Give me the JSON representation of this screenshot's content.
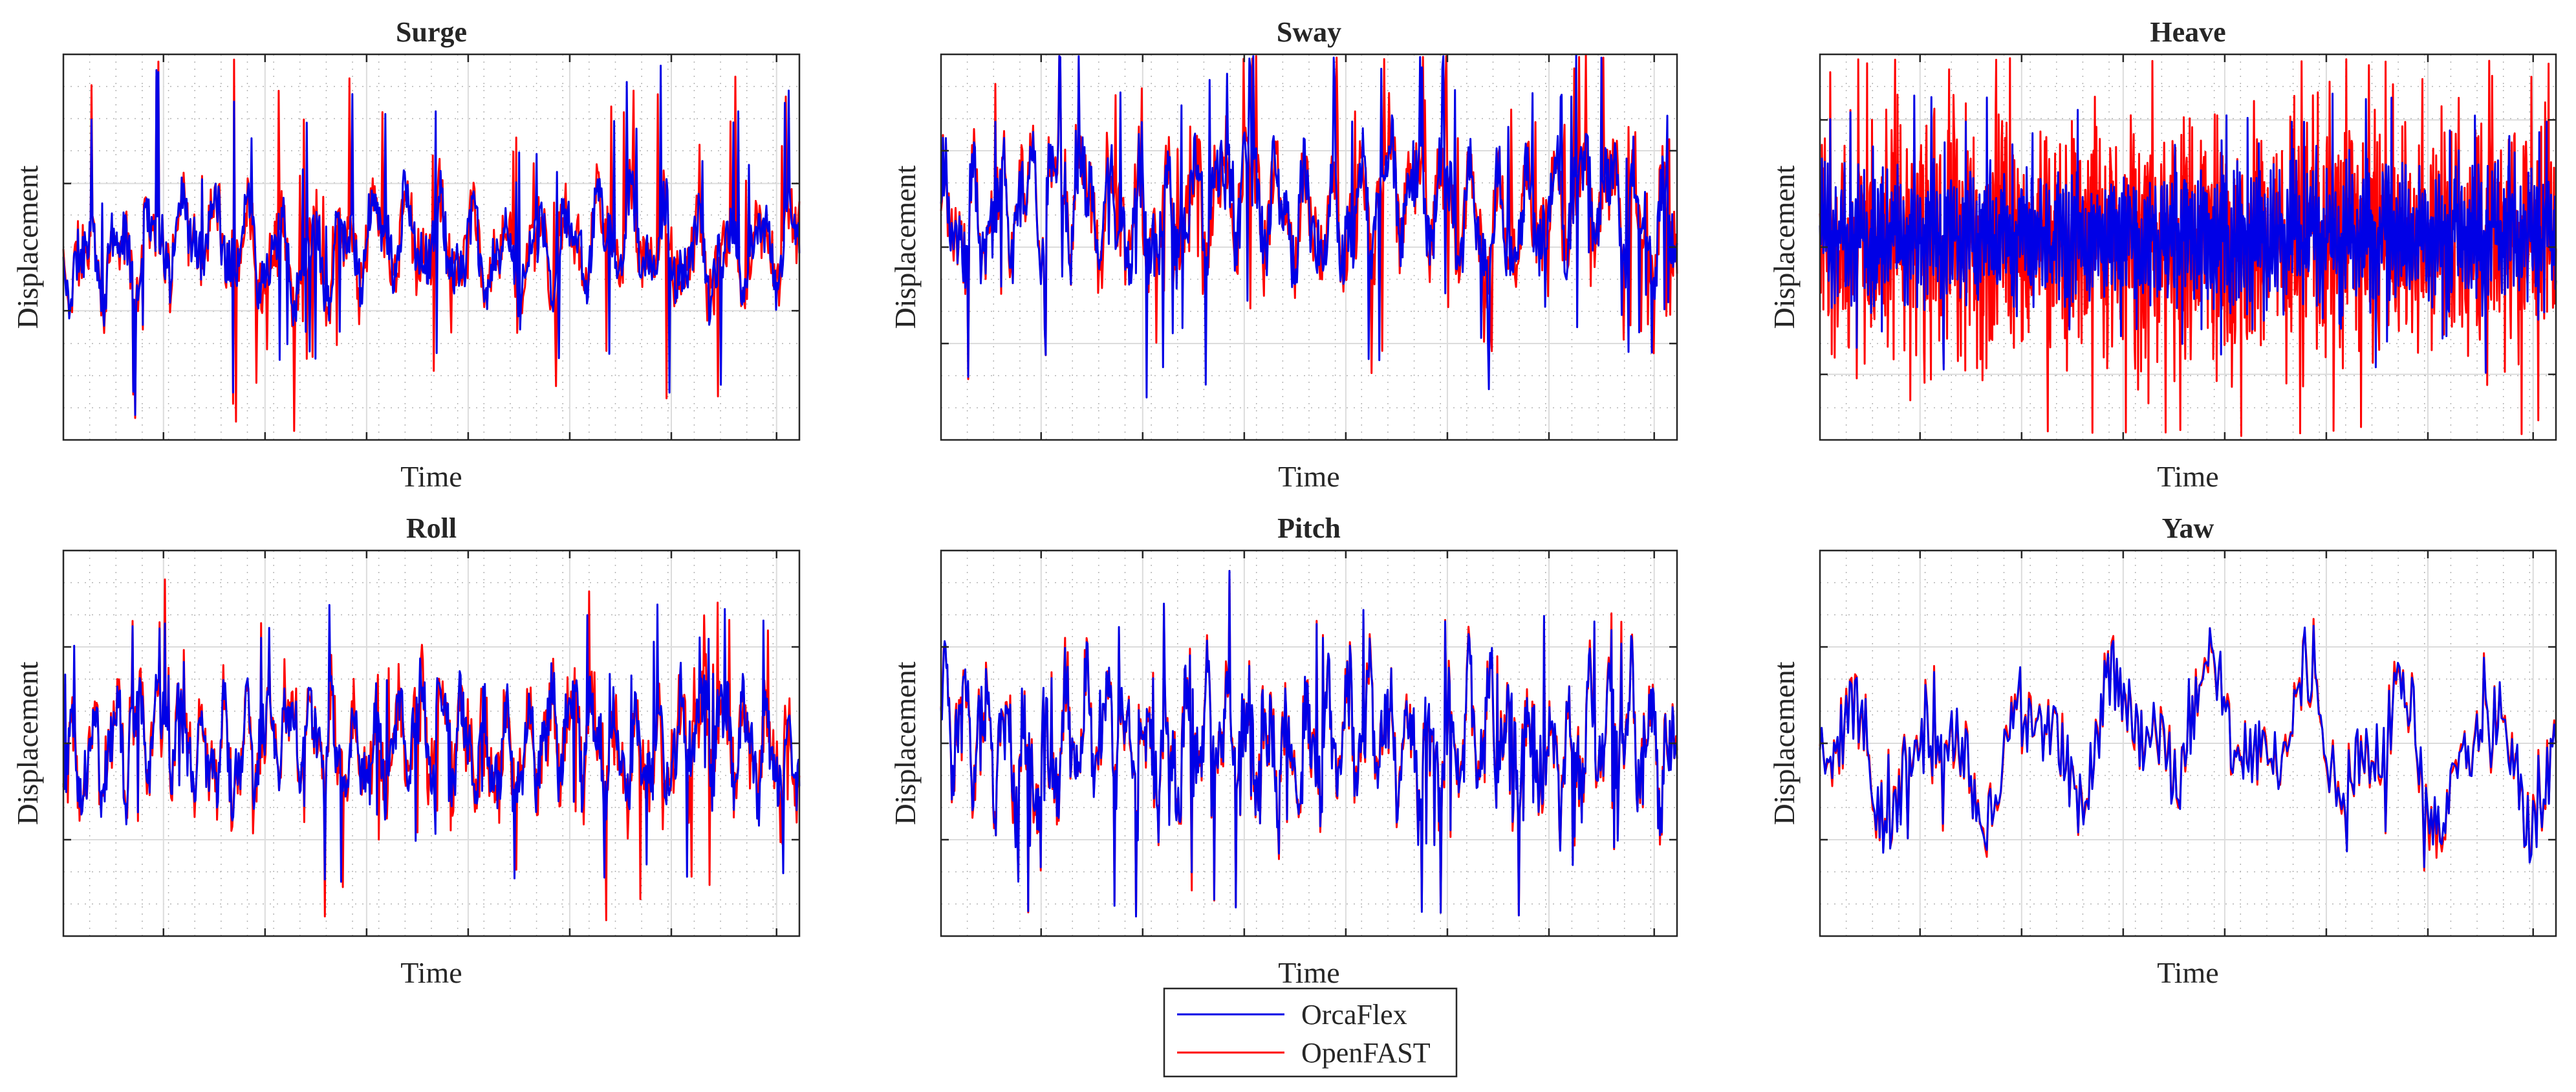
{
  "figure": {
    "background": "#ffffff",
    "axis_color": "#262626",
    "grid_major_color": "#dcdcdc",
    "grid_minor_color": "#b4b4b4"
  },
  "legend": {
    "placement": "bottom-center",
    "entries": [
      {
        "label": "OrcaFlex",
        "color": "#0000e6"
      },
      {
        "label": "OpenFAST",
        "color": "#ff0000"
      }
    ]
  },
  "chart_data": [
    {
      "type": "line",
      "title": "Surge",
      "xlabel": "Time",
      "ylabel": "Displacement",
      "xlim": [
        0,
        1
      ],
      "ylim": [
        -1,
        1
      ],
      "x_ticks": [
        0.136,
        0.274,
        0.412,
        0.55,
        0.688,
        0.826,
        0.969
      ],
      "y_ticks": [
        -0.33,
        0.33
      ],
      "grid": true,
      "minor_grid": true,
      "series": [
        {
          "name": "OrcaFlex",
          "color": "#0000e6",
          "n": 760,
          "amp": 0.3,
          "spike": 0.7,
          "cap": 0.95,
          "bias": 0.0,
          "seed": 11,
          "freq": 0.095
        },
        {
          "name": "OpenFAST",
          "color": "#ff0000",
          "n": 760,
          "amp": 0.3,
          "spike": 0.7,
          "cap": 0.98,
          "bias": 0.0,
          "seed": 11,
          "freq": 0.095,
          "diverge": 0.12
        }
      ]
    },
    {
      "type": "line",
      "title": "Sway",
      "xlabel": "Time",
      "ylabel": "Displacement",
      "xlim": [
        0,
        1
      ],
      "ylim": [
        -1,
        1
      ],
      "x_ticks": [
        0.136,
        0.274,
        0.412,
        0.55,
        0.688,
        0.826,
        0.969
      ],
      "y_ticks": [
        -0.5,
        0.0,
        0.5
      ],
      "grid": true,
      "minor_grid": true,
      "series": [
        {
          "name": "OrcaFlex",
          "color": "#0000e6",
          "n": 760,
          "amp": 0.38,
          "spike": 0.65,
          "cap": 1.0,
          "bias": 0.2,
          "seed": 23,
          "freq": 0.11
        },
        {
          "name": "OpenFAST",
          "color": "#ff0000",
          "n": 760,
          "amp": 0.38,
          "spike": 0.65,
          "cap": 1.0,
          "bias": 0.2,
          "seed": 23,
          "freq": 0.11,
          "diverge": 0.12
        }
      ]
    },
    {
      "type": "line",
      "title": "Heave",
      "xlabel": "Time",
      "ylabel": "Displacement",
      "xlim": [
        0,
        1
      ],
      "ylim": [
        -1,
        1
      ],
      "x_ticks": [
        0.136,
        0.274,
        0.412,
        0.55,
        0.688,
        0.826,
        0.969
      ],
      "y_ticks": [
        -0.66,
        0.0,
        0.66
      ],
      "grid": true,
      "minor_grid": true,
      "series": [
        {
          "name": "OrcaFlex",
          "color": "#0000e6",
          "n": 1500,
          "amp": 0.32,
          "spike": 0.45,
          "cap": 0.8,
          "bias": 0.05,
          "seed": 37,
          "freq": 0.55
        },
        {
          "name": "OpenFAST",
          "color": "#ff0000",
          "n": 1500,
          "amp": 0.42,
          "spike": 0.5,
          "cap": 0.98,
          "bias": 0.05,
          "seed": 37,
          "freq": 0.55,
          "diverge": 0.5
        }
      ]
    },
    {
      "type": "line",
      "title": "Roll",
      "xlabel": "Time",
      "ylabel": "Displacement",
      "xlim": [
        0,
        1
      ],
      "ylim": [
        -1,
        1
      ],
      "x_ticks": [
        0.136,
        0.274,
        0.412,
        0.55,
        0.688,
        0.826,
        0.969
      ],
      "y_ticks": [
        -0.5,
        0.0,
        0.5
      ],
      "grid": true,
      "minor_grid": true,
      "series": [
        {
          "name": "OrcaFlex",
          "color": "#0000e6",
          "n": 820,
          "amp": 0.34,
          "spike": 0.55,
          "cap": 0.72,
          "bias": 0.0,
          "seed": 41,
          "freq": 0.13
        },
        {
          "name": "OpenFAST",
          "color": "#ff0000",
          "n": 820,
          "amp": 0.34,
          "spike": 0.55,
          "cap": 0.93,
          "bias": 0.0,
          "seed": 41,
          "freq": 0.13,
          "diverge": 0.14
        }
      ]
    },
    {
      "type": "line",
      "title": "Pitch",
      "xlabel": "Time",
      "ylabel": "Displacement",
      "xlim": [
        0,
        1
      ],
      "ylim": [
        -1,
        1
      ],
      "x_ticks": [
        0.136,
        0.274,
        0.412,
        0.55,
        0.688,
        0.826,
        0.969
      ],
      "y_ticks": [
        -0.5,
        0.0,
        0.5
      ],
      "grid": true,
      "minor_grid": true,
      "series": [
        {
          "name": "OrcaFlex",
          "color": "#0000e6",
          "n": 820,
          "amp": 0.4,
          "spike": 0.55,
          "cap": 0.9,
          "bias": 0.0,
          "seed": 53,
          "freq": 0.14
        },
        {
          "name": "OpenFAST",
          "color": "#ff0000",
          "n": 820,
          "amp": 0.4,
          "spike": 0.55,
          "cap": 0.9,
          "bias": 0.0,
          "seed": 53,
          "freq": 0.14,
          "diverge": 0.08
        }
      ]
    },
    {
      "type": "line",
      "title": "Yaw",
      "xlabel": "Time",
      "ylabel": "Displacement",
      "xlim": [
        0,
        1
      ],
      "ylim": [
        -1,
        1
      ],
      "x_ticks": [
        0.136,
        0.274,
        0.412,
        0.55,
        0.688,
        0.826,
        0.969
      ],
      "y_ticks": [
        -0.5,
        0.0,
        0.5
      ],
      "grid": true,
      "minor_grid": true,
      "series": [
        {
          "name": "OrcaFlex",
          "color": "#0000e6",
          "n": 420,
          "amp": 0.42,
          "spike": 0.3,
          "cap": 0.9,
          "bias": 0.0,
          "seed": 67,
          "freq": 0.06
        },
        {
          "name": "OpenFAST",
          "color": "#ff0000",
          "n": 420,
          "amp": 0.42,
          "spike": 0.3,
          "cap": 0.9,
          "bias": 0.0,
          "seed": 67,
          "freq": 0.06,
          "diverge": 0.07
        }
      ]
    }
  ]
}
